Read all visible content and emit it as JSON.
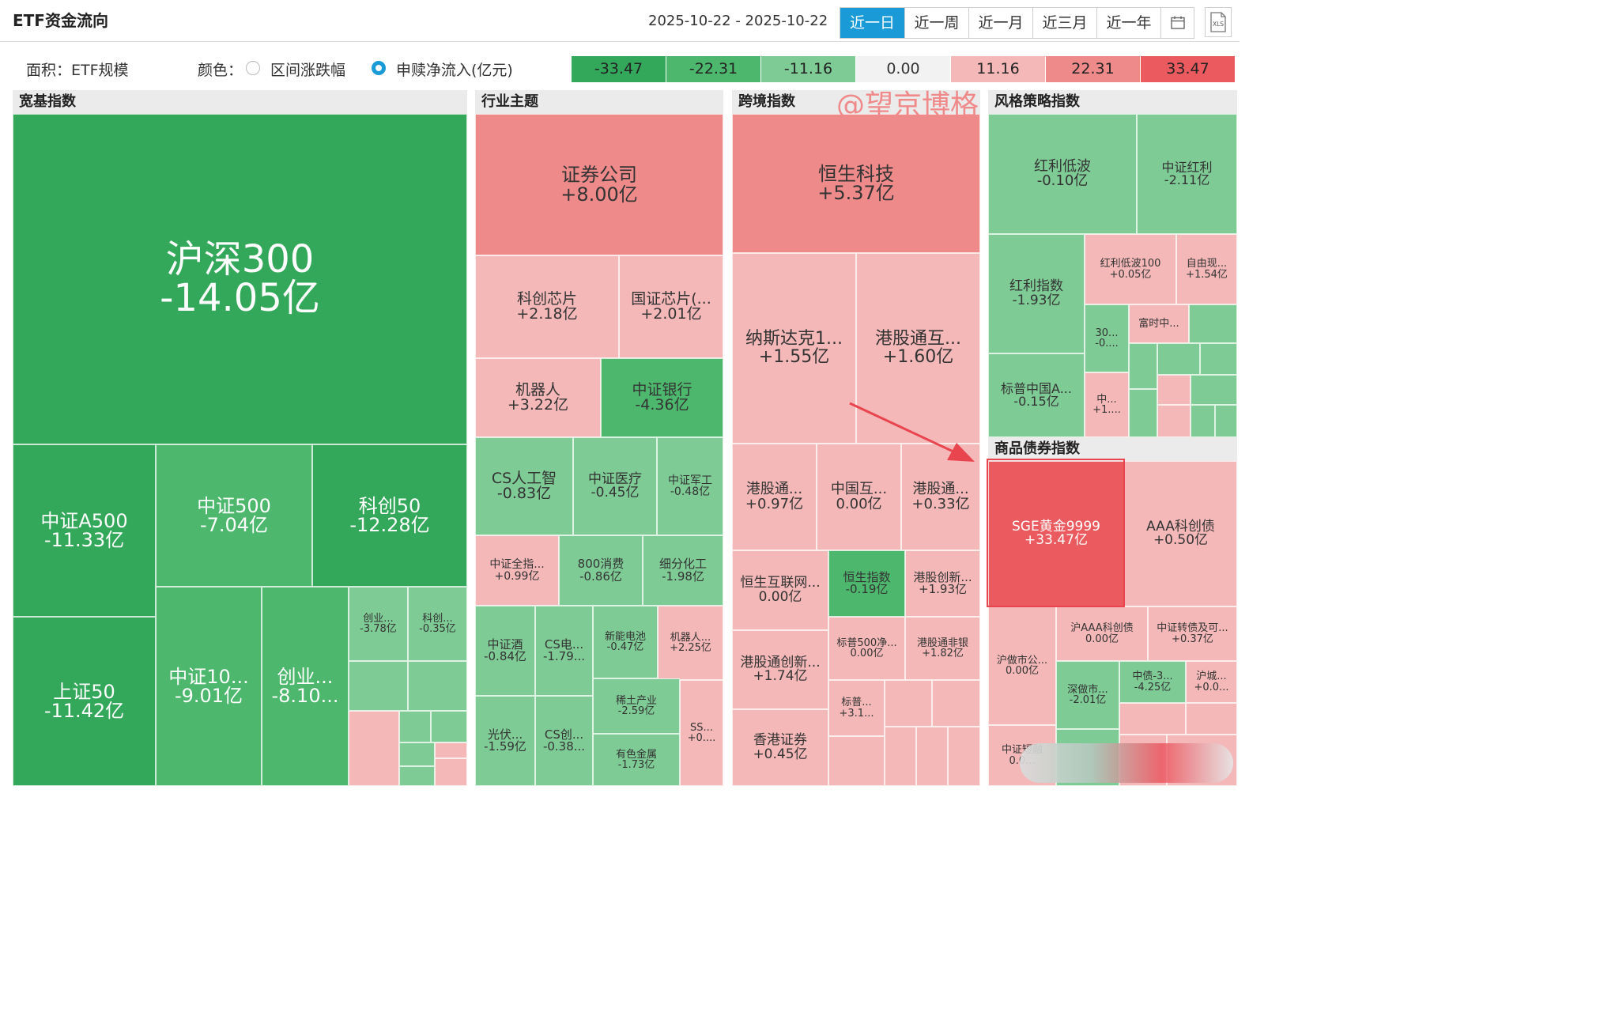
{
  "header": {
    "title": "ETF资金流向",
    "date_range": "2025-10-22 - 2025-10-22",
    "range_buttons": [
      "近一日",
      "近一周",
      "近一月",
      "近三月",
      "近一年"
    ],
    "active_range": "近一日",
    "calendar_icon": "calendar-icon",
    "export_icon": "xls-export-icon",
    "export_label": "XLS"
  },
  "options": {
    "area_label": "面积：ETF规模",
    "color_label": "颜色：",
    "color_options": [
      "区间涨跌幅",
      "申赎净流入(亿元)"
    ],
    "selected_color_option": "申赎净流入(亿元)"
  },
  "legend": {
    "values": [
      "-33.47",
      "-22.31",
      "-11.16",
      "0.00",
      "11.16",
      "22.31",
      "33.47"
    ],
    "colors": [
      "#33a85a",
      "#4db86d",
      "#7ecb95",
      "#f2f2f2",
      "#f4b8b8",
      "#ef8a8a",
      "#ea5a5f"
    ]
  },
  "watermark": "@望京博格",
  "groups": [
    {
      "name": "宽基指数",
      "tiles": [
        {
          "name": "沪深300",
          "value": "-14.05亿"
        },
        {
          "name": "中证A500",
          "value": "-11.33亿"
        },
        {
          "name": "中证500",
          "value": "-7.04亿"
        },
        {
          "name": "科创50",
          "value": "-12.28亿"
        },
        {
          "name": "上证50",
          "value": "-11.42亿"
        },
        {
          "name": "中证10...",
          "value": "-9.01亿"
        },
        {
          "name": "创业...",
          "value": "-8.10..."
        },
        {
          "name": "创业...",
          "value": "-3.78亿"
        },
        {
          "name": "科创...",
          "value": "-0.35亿"
        }
      ]
    },
    {
      "name": "行业主题",
      "tiles": [
        {
          "name": "证券公司",
          "value": "+8.00亿"
        },
        {
          "name": "科创芯片",
          "value": "+2.18亿"
        },
        {
          "name": "国证芯片(...",
          "value": "+2.01亿"
        },
        {
          "name": "机器人",
          "value": "+3.22亿"
        },
        {
          "name": "中证银行",
          "value": "-4.36亿"
        },
        {
          "name": "CS人工智",
          "value": "-0.83亿"
        },
        {
          "name": "中证医疗",
          "value": "-0.45亿"
        },
        {
          "name": "中证军工",
          "value": "-0.48亿"
        },
        {
          "name": "中证全指...",
          "value": "+0.99亿"
        },
        {
          "name": "800消费",
          "value": "-0.86亿"
        },
        {
          "name": "细分化工",
          "value": "-1.98亿"
        },
        {
          "name": "中证酒",
          "value": "-0.84亿"
        },
        {
          "name": "CS电...",
          "value": "-1.79..."
        },
        {
          "name": "新能电池",
          "value": "-0.47亿"
        },
        {
          "name": "机器人...",
          "value": "+2.25亿"
        },
        {
          "name": "稀土产业",
          "value": "-2.59亿"
        },
        {
          "name": "光伏...",
          "value": "-1.59亿"
        },
        {
          "name": "CS创...",
          "value": "-0.38..."
        },
        {
          "name": "有色金属",
          "value": "-1.73亿"
        },
        {
          "name": "SS...",
          "value": "+0...."
        }
      ]
    },
    {
      "name": "跨境指数",
      "tiles": [
        {
          "name": "恒生科技",
          "value": "+5.37亿"
        },
        {
          "name": "纳斯达克1...",
          "value": "+1.55亿"
        },
        {
          "name": "港股通互...",
          "value": "+1.60亿"
        },
        {
          "name": "港股通...",
          "value": "+0.97亿"
        },
        {
          "name": "中国互...",
          "value": "0.00亿"
        },
        {
          "name": "港股通...",
          "value": "+0.33亿"
        },
        {
          "name": "恒生互联网...",
          "value": "0.00亿"
        },
        {
          "name": "恒生指数",
          "value": "-0.19亿"
        },
        {
          "name": "港股创新...",
          "value": "+1.93亿"
        },
        {
          "name": "标普500净...",
          "value": "0.00亿"
        },
        {
          "name": "港股通非银",
          "value": "+1.82亿"
        },
        {
          "name": "港股通创新...",
          "value": "+1.74亿"
        },
        {
          "name": "标普...",
          "value": "+3.1..."
        },
        {
          "name": "香港证券",
          "value": "+0.45亿"
        }
      ]
    },
    {
      "name": "风格策略指数",
      "tiles": [
        {
          "name": "红利低波",
          "value": "-0.10亿"
        },
        {
          "name": "中证红利",
          "value": "-2.11亿"
        },
        {
          "name": "红利指数",
          "value": "-1.93亿"
        },
        {
          "name": "红利低波100",
          "value": "+0.05亿"
        },
        {
          "name": "自由现...",
          "value": "+1.54亿"
        },
        {
          "name": "富时中...",
          "value": ""
        },
        {
          "name": "30...",
          "value": "-0...."
        },
        {
          "name": "标普中国A...",
          "value": "-0.15亿"
        },
        {
          "name": "中...",
          "value": "+1...."
        }
      ]
    },
    {
      "name": "商品债券指数",
      "tiles": [
        {
          "name": "SGE黄金9999",
          "value": "+33.47亿"
        },
        {
          "name": "AAA科创债",
          "value": "+0.50亿"
        },
        {
          "name": "沪做市公...",
          "value": "0.00亿"
        },
        {
          "name": "沪AAA科创债",
          "value": "0.00亿"
        },
        {
          "name": "中证转债及可...",
          "value": "+0.37亿"
        },
        {
          "name": "深做市...",
          "value": "-2.01亿"
        },
        {
          "name": "中债-3...",
          "value": "-4.25亿"
        },
        {
          "name": "沪城...",
          "value": "+0.0..."
        },
        {
          "name": "中证短融",
          "value": "0.0..."
        }
      ]
    }
  ]
}
